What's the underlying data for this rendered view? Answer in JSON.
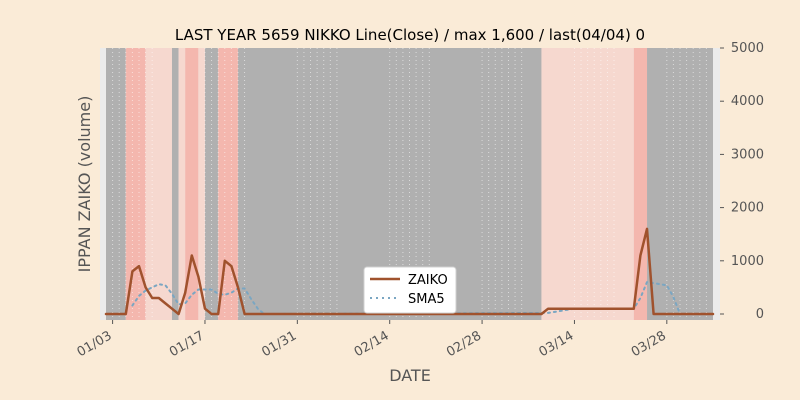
{
  "chart_data": {
    "type": "line",
    "title": "LAST YEAR 5659 NIKKO Line(Close) / max 1,600 / last(04/04) 0",
    "xlabel": "DATE",
    "ylabel": "IPPAN ZAIKO (volume)",
    "ylim": [
      0,
      5000
    ],
    "y_ticks": [
      0,
      1000,
      2000,
      3000,
      4000,
      5000
    ],
    "y_tick_labels": [
      "0",
      "1000",
      "2000",
      "3000",
      "4000",
      "5000"
    ],
    "x_ticks": [
      "01/03",
      "01/17",
      "01/31",
      "02/14",
      "02/28",
      "03/14",
      "03/28"
    ],
    "x_start_date": "2022-01-02",
    "x_end_date": "2022-04-04",
    "y_axis_side": "right",
    "legend_position": "lower center",
    "series": [
      {
        "name": "ZAIKO",
        "color": "#a0522d",
        "style": "solid",
        "points": [
          [
            "01/02",
            0
          ],
          [
            "01/03",
            0
          ],
          [
            "01/04",
            0
          ],
          [
            "01/05",
            0
          ],
          [
            "01/06",
            800
          ],
          [
            "01/07",
            900
          ],
          [
            "01/08",
            500
          ],
          [
            "01/09",
            300
          ],
          [
            "01/10",
            300
          ],
          [
            "01/11",
            200
          ],
          [
            "01/12",
            100
          ],
          [
            "01/13",
            0
          ],
          [
            "01/14",
            400
          ],
          [
            "01/15",
            1100
          ],
          [
            "01/16",
            700
          ],
          [
            "01/17",
            100
          ],
          [
            "01/18",
            0
          ],
          [
            "01/19",
            0
          ],
          [
            "01/20",
            1000
          ],
          [
            "01/21",
            900
          ],
          [
            "01/22",
            500
          ],
          [
            "01/23",
            0
          ],
          [
            "01/24",
            0
          ],
          [
            "03/09",
            0
          ],
          [
            "03/10",
            100
          ],
          [
            "03/11",
            100
          ],
          [
            "03/22",
            100
          ],
          [
            "03/23",
            100
          ],
          [
            "03/24",
            1100
          ],
          [
            "03/25",
            1600
          ],
          [
            "03/26",
            0
          ],
          [
            "03/27",
            0
          ],
          [
            "04/04",
            0
          ]
        ]
      },
      {
        "name": "SMA5",
        "color": "#7aa6c2",
        "style": "dotted",
        "points": [
          [
            "01/06",
            160
          ],
          [
            "01/07",
            340
          ],
          [
            "01/08",
            440
          ],
          [
            "01/09",
            500
          ],
          [
            "01/10",
            560
          ],
          [
            "01/11",
            540
          ],
          [
            "01/12",
            380
          ],
          [
            "01/13",
            180
          ],
          [
            "01/14",
            200
          ],
          [
            "01/15",
            360
          ],
          [
            "01/16",
            460
          ],
          [
            "01/17",
            460
          ],
          [
            "01/18",
            460
          ],
          [
            "01/19",
            380
          ],
          [
            "01/20",
            360
          ],
          [
            "01/21",
            400
          ],
          [
            "01/22",
            480
          ],
          [
            "01/23",
            480
          ],
          [
            "01/24",
            280
          ],
          [
            "01/25",
            100
          ],
          [
            "01/26",
            0
          ],
          [
            "03/10",
            20
          ],
          [
            "03/11",
            40
          ],
          [
            "03/12",
            60
          ],
          [
            "03/13",
            80
          ],
          [
            "03/14",
            100
          ],
          [
            "03/22",
            100
          ],
          [
            "03/23",
            100
          ],
          [
            "03/24",
            300
          ],
          [
            "03/25",
            600
          ],
          [
            "03/26",
            580
          ],
          [
            "03/27",
            560
          ],
          [
            "03/28",
            540
          ],
          [
            "03/29",
            320
          ],
          [
            "03/30",
            0
          ],
          [
            "04/04",
            0
          ]
        ]
      }
    ],
    "bands": [
      [
        "01/02",
        "01/05",
        "dark"
      ],
      [
        "01/05",
        "01/08",
        "red"
      ],
      [
        "01/08",
        "01/12",
        "light"
      ],
      [
        "01/12",
        "01/13",
        "dark"
      ],
      [
        "01/13",
        "01/14",
        "light"
      ],
      [
        "01/14",
        "01/16",
        "red"
      ],
      [
        "01/16",
        "01/17",
        "light"
      ],
      [
        "01/17",
        "01/19",
        "dark"
      ],
      [
        "01/19",
        "01/22",
        "red"
      ],
      [
        "01/22",
        "03/09",
        "dark"
      ],
      [
        "03/09",
        "03/23",
        "light"
      ],
      [
        "03/23",
        "03/25",
        "red"
      ],
      [
        "03/25",
        "04/04",
        "dark"
      ]
    ],
    "band_colors": {
      "dark": "#b0b0b0",
      "red": "#f4b7ae",
      "light": "#f6d8cf"
    }
  }
}
